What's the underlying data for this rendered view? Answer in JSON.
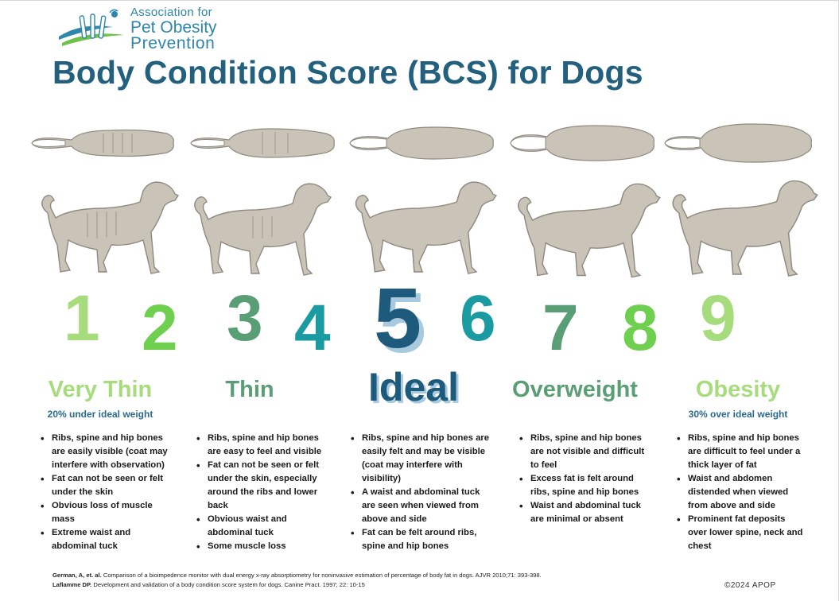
{
  "logo": {
    "line1": "Association for",
    "line2": "Pet Obesity",
    "line3": "Prevention"
  },
  "title": "Body Condition Score (BCS) for Dogs",
  "scores": [
    {
      "n": "1",
      "color": "#a6dc7c"
    },
    {
      "n": "2",
      "color": "#6ed04e"
    },
    {
      "n": "3",
      "color": "#5a9e75"
    },
    {
      "n": "4",
      "color": "#1a9ba2"
    },
    {
      "n": "5",
      "color": "#1d5a7c"
    },
    {
      "n": "6",
      "color": "#1a9ba2"
    },
    {
      "n": "7",
      "color": "#5a9e75"
    },
    {
      "n": "8",
      "color": "#6ed04e"
    },
    {
      "n": "9",
      "color": "#a6dc7c"
    }
  ],
  "categories": [
    {
      "label": "Very Thin",
      "color": "#a6dc7c",
      "subtitle": "20% under ideal weight",
      "bullets": [
        "Ribs, spine and hip bones are easily visible (coat may interfere with observation)",
        "Fat can not be seen or felt under the skin",
        "Obvious loss of muscle mass",
        "Extreme waist and abdominal tuck"
      ]
    },
    {
      "label": "Thin",
      "color": "#5a9e75",
      "subtitle": "",
      "bullets": [
        "Ribs, spine and hip bones are easy to feel and visible",
        "Fat can not be seen or felt under the skin, especially around the ribs and lower back",
        "Obvious waist and abdominal tuck",
        "Some muscle loss"
      ]
    },
    {
      "label": "Ideal",
      "color": "#1d5a7c",
      "subtitle": "",
      "bullets": [
        "Ribs, spine and hip bones are easily felt and may be visible (coat may interfere with visibility)",
        "A waist and abdominal tuck are seen when viewed from above and side",
        "Fat can be felt around ribs, spine and hip bones"
      ]
    },
    {
      "label": "Overweight",
      "color": "#5a9e75",
      "subtitle": "",
      "bullets": [
        "Ribs, spine and hip bones are not visible and difficult to feel",
        "Excess fat is felt around ribs, spine and hip bones",
        "Waist and abdominal tuck are minimal or absent"
      ]
    },
    {
      "label": "Obesity",
      "color": "#a6dc7c",
      "subtitle": "30% over ideal weight",
      "bullets": [
        "Ribs, spine and hip bones are difficult to feel under a thick layer of fat",
        "Waist and abdomen distended when viewed from above and side",
        "Prominent fat deposits over lower spine, neck and chest"
      ]
    }
  ],
  "references": [
    {
      "author": "German, A, et. al.",
      "text": " Comparison of a bioimpedence monitor with dual energy x-ray absorptiometry for noninvasive estimation of percentage of body fat in dogs. AJVR 2010;71: 393-398."
    },
    {
      "author": "Laflamme DP.",
      "text": " Development and validation of a body condition score system for dogs. Canine Pract. 1997; 22: 10-15"
    }
  ],
  "copyright": "©2024 APOP",
  "dog_color": "#c9c3b8",
  "dog_outline": "#8f8a80"
}
